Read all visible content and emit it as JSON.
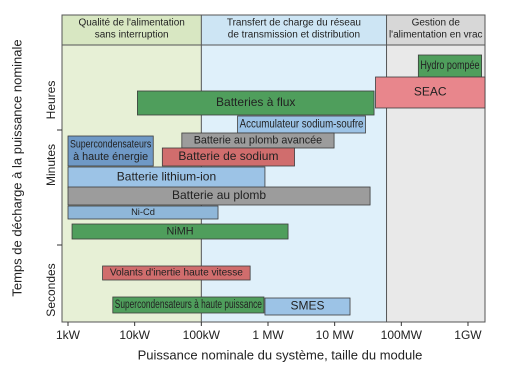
{
  "chart_data": {
    "type": "range",
    "x_label": "Puissance nominale du système, taille du module",
    "y_label": "Temps de décharge à la puissance nominale",
    "y_categories": [
      "Heures",
      "Minutes",
      "Secondes"
    ],
    "xscale": "log",
    "xlim": [
      1,
      1800000
    ],
    "xticks": [
      {
        "value": 1,
        "label": "1kW"
      },
      {
        "value": 10,
        "label": "10kW"
      },
      {
        "value": 100,
        "label": "100kW"
      },
      {
        "value": 1000,
        "label": "1 MW"
      },
      {
        "value": 10000,
        "label": "10 MW"
      },
      {
        "value": 100000,
        "label": "100MW"
      },
      {
        "value": 1000000,
        "label": "1GW"
      }
    ],
    "zones": [
      {
        "label": [
          "Qualité de l'alimentation",
          "sans interruption"
        ],
        "range": [
          1,
          100
        ],
        "color": "#e7f0d6",
        "header_color": "#d8e7c2"
      },
      {
        "label": [
          "Transfert de charge du réseau",
          "de transmission et distribution"
        ],
        "range": [
          100,
          60000
        ],
        "color": "#dff0fa",
        "header_color": "#cde5f4"
      },
      {
        "label": [
          "Gestion de",
          "l'alimentation en vrac"
        ],
        "range": [
          60000,
          1800000
        ],
        "color": "#e9e9e9",
        "header_color": "#d7d7d7"
      }
    ],
    "series": [
      {
        "name": "Hydro pompée",
        "range": [
          180000,
          1600000
        ],
        "color": "#4f9e5c"
      },
      {
        "name": "SEAC",
        "range": [
          41000,
          1800000
        ],
        "color": "#e8868c"
      },
      {
        "name": "Batteries à flux",
        "range": [
          11,
          39000
        ],
        "color": "#4f9e5c"
      },
      {
        "name": "Accumulateur sodium-soufre",
        "range": [
          350,
          29000
        ],
        "color": "#9cc3e6"
      },
      {
        "name": [
          "Supercondensateurs",
          "à haute énergie"
        ],
        "range": [
          1,
          19
        ],
        "color": "#6f99c6"
      },
      {
        "name": "Batterie au plomb avancée",
        "range": [
          51,
          9800
        ],
        "color": "#9c9c9c"
      },
      {
        "name": "Batterie de sodium",
        "range": [
          26,
          2500
        ],
        "color": "#d06d6d"
      },
      {
        "name": "Batterie lithium-ion",
        "range": [
          1,
          900
        ],
        "color": "#9cc3e6"
      },
      {
        "name": "Batterie au plomb",
        "range": [
          1,
          34000
        ],
        "color": "#9c9c9c"
      },
      {
        "name": "Ni-Cd",
        "range": [
          1,
          178
        ],
        "color": "#8fb7d9"
      },
      {
        "name": "NiMH",
        "range": [
          1.15,
          2000
        ],
        "color": "#4f9e5c"
      },
      {
        "name": "Volants d'inertie haute vitesse",
        "range": [
          3.3,
          540
        ],
        "color": "#d06d6d"
      },
      {
        "name": "Supercondensateurs à haute puissance",
        "range": [
          4.7,
          870
        ],
        "color": "#4f9e5c"
      },
      {
        "name": "SMES",
        "range": [
          900,
          17000
        ],
        "color": "#9cc3e6"
      }
    ]
  }
}
